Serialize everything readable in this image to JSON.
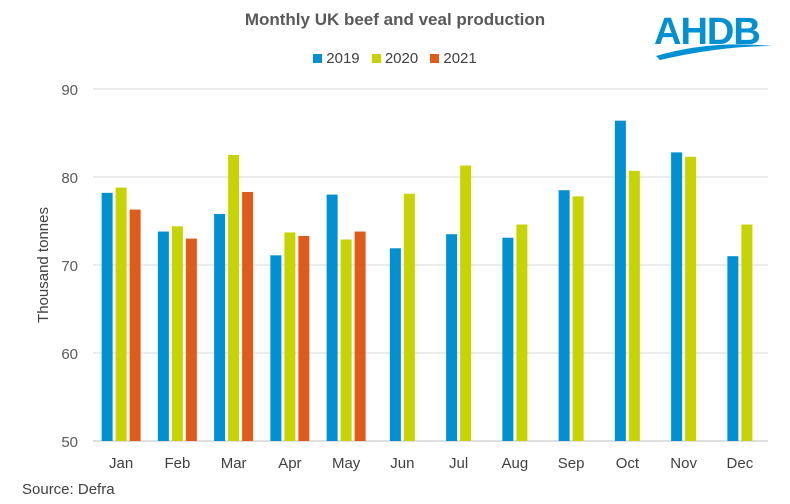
{
  "logo_text": "AHDB",
  "source": "Source: Defra",
  "colors": {
    "2019": "#0090D4",
    "2020": "#C8D400",
    "2021": "#E05A1A"
  },
  "chart_data": {
    "type": "bar",
    "title": "Monthly UK beef and veal production",
    "xlabel": "",
    "ylabel": "Thousand tonnes",
    "ylim": [
      50,
      90
    ],
    "yticks": [
      50,
      60,
      70,
      80,
      90
    ],
    "grid": true,
    "legend_position": "top",
    "categories": [
      "Jan",
      "Feb",
      "Mar",
      "Apr",
      "May",
      "Jun",
      "Jul",
      "Aug",
      "Sep",
      "Oct",
      "Nov",
      "Dec"
    ],
    "series": [
      {
        "name": "2019",
        "values": [
          78.2,
          73.8,
          75.8,
          71.1,
          78.0,
          71.9,
          73.5,
          73.1,
          78.5,
          86.4,
          82.8,
          71.0
        ]
      },
      {
        "name": "2020",
        "values": [
          78.8,
          74.4,
          82.5,
          73.7,
          72.9,
          78.1,
          81.3,
          74.6,
          77.8,
          80.7,
          82.3,
          74.6
        ]
      },
      {
        "name": "2021",
        "values": [
          76.3,
          73.0,
          78.3,
          73.3,
          73.8,
          null,
          null,
          null,
          null,
          null,
          null,
          null
        ]
      }
    ]
  }
}
